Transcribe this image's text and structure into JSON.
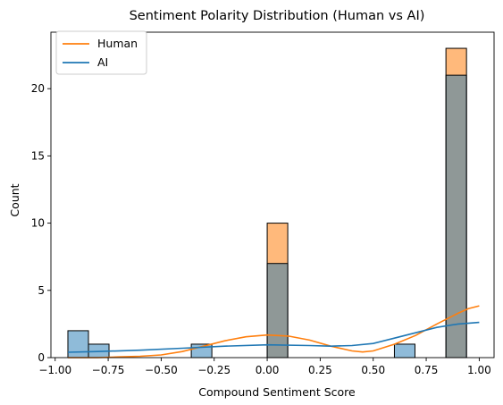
{
  "chart_data": {
    "type": "bar",
    "title": "Sentiment Polarity Distribution (Human vs AI)",
    "xlabel": "Compound Sentiment Score",
    "ylabel": "Count",
    "xlim": [
      -1.02,
      1.07
    ],
    "ylim": [
      0,
      24.2
    ],
    "xticks": [
      -1.0,
      -0.75,
      -0.5,
      -0.25,
      0.0,
      0.25,
      0.5,
      0.75,
      1.0
    ],
    "xtick_labels": [
      "−1.00",
      "−0.75",
      "−0.50",
      "−0.25",
      "0.00",
      "0.25",
      "0.50",
      "0.75",
      "1.00"
    ],
    "yticks": [
      0,
      5,
      10,
      15,
      20
    ],
    "ytick_labels": [
      "0",
      "5",
      "10",
      "15",
      "20"
    ],
    "bin_edges_start": -0.94,
    "bin_width": 0.097,
    "bin_count": 20,
    "legend": {
      "placement": "top-left",
      "entries": [
        "Human",
        "AI"
      ]
    },
    "series": [
      {
        "name": "Human",
        "color": "#ff7f0e",
        "bins": [
          {
            "x0": 0.0,
            "x1": 0.097,
            "count": 10
          },
          {
            "x0": 0.843,
            "x1": 0.94,
            "count": 23
          }
        ],
        "kde": [
          [
            -0.94,
            0.0
          ],
          [
            -0.8,
            0.0
          ],
          [
            -0.7,
            0.05
          ],
          [
            -0.6,
            0.1
          ],
          [
            -0.5,
            0.2
          ],
          [
            -0.4,
            0.45
          ],
          [
            -0.3,
            0.85
          ],
          [
            -0.2,
            1.25
          ],
          [
            -0.1,
            1.55
          ],
          [
            0.0,
            1.68
          ],
          [
            0.1,
            1.6
          ],
          [
            0.2,
            1.3
          ],
          [
            0.3,
            0.85
          ],
          [
            0.4,
            0.5
          ],
          [
            0.45,
            0.42
          ],
          [
            0.5,
            0.5
          ],
          [
            0.6,
            1.0
          ],
          [
            0.7,
            1.65
          ],
          [
            0.8,
            2.5
          ],
          [
            0.9,
            3.3
          ],
          [
            0.95,
            3.65
          ],
          [
            1.0,
            3.85
          ]
        ]
      },
      {
        "name": "AI",
        "color": "#1f77b4",
        "bins": [
          {
            "x0": -0.94,
            "x1": -0.843,
            "count": 2
          },
          {
            "x0": -0.843,
            "x1": -0.746,
            "count": 1
          },
          {
            "x0": -0.358,
            "x1": -0.261,
            "count": 1
          },
          {
            "x0": 0.0,
            "x1": 0.097,
            "count": 7
          },
          {
            "x0": 0.6,
            "x1": 0.697,
            "count": 1
          },
          {
            "x0": 0.843,
            "x1": 0.94,
            "count": 21
          }
        ],
        "kde": [
          [
            -0.94,
            0.4
          ],
          [
            -0.8,
            0.45
          ],
          [
            -0.6,
            0.55
          ],
          [
            -0.4,
            0.7
          ],
          [
            -0.2,
            0.85
          ],
          [
            0.0,
            0.95
          ],
          [
            0.2,
            0.9
          ],
          [
            0.3,
            0.85
          ],
          [
            0.4,
            0.9
          ],
          [
            0.5,
            1.05
          ],
          [
            0.6,
            1.45
          ],
          [
            0.7,
            1.85
          ],
          [
            0.8,
            2.25
          ],
          [
            0.9,
            2.5
          ],
          [
            1.0,
            2.62
          ]
        ]
      }
    ]
  }
}
